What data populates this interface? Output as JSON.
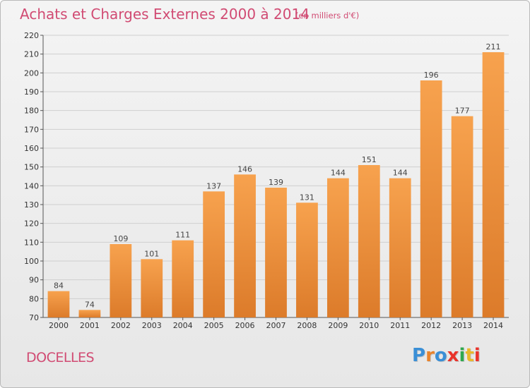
{
  "title": "Achats et Charges Externes 2000 à 2014",
  "subtitle": "(en milliers d'€)",
  "place": "DOCELLES",
  "logo": {
    "letters": [
      "P",
      "r",
      "o",
      "x",
      "i",
      "t",
      "i"
    ],
    "colors": [
      "#3a8fd6",
      "#e9832b",
      "#3a8fd6",
      "#e9332b",
      "#2fa84f",
      "#e9b82b",
      "#e9332b"
    ]
  },
  "colors": {
    "bar_light": "#f7a24e",
    "bar_dark": "#dc7b2a",
    "text_accent": "#d14b73"
  },
  "chart_data": {
    "type": "bar",
    "categories": [
      "2000",
      "2001",
      "2002",
      "2003",
      "2004",
      "2005",
      "2006",
      "2007",
      "2008",
      "2009",
      "2010",
      "2011",
      "2012",
      "2013",
      "2014"
    ],
    "values": [
      84,
      74,
      109,
      101,
      111,
      137,
      146,
      139,
      131,
      144,
      151,
      144,
      196,
      177,
      211
    ],
    "ylim": [
      70,
      220
    ],
    "yticks": [
      70,
      80,
      90,
      100,
      110,
      120,
      130,
      140,
      150,
      160,
      170,
      180,
      190,
      200,
      210,
      220
    ],
    "grid": true
  }
}
